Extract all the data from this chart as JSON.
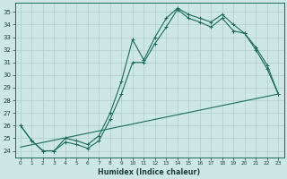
{
  "xlabel": "Humidex (Indice chaleur)",
  "xlim": [
    -0.5,
    23.5
  ],
  "ylim": [
    23.5,
    35.7
  ],
  "yticks": [
    24,
    25,
    26,
    27,
    28,
    29,
    30,
    31,
    32,
    33,
    34,
    35
  ],
  "xticks": [
    0,
    1,
    2,
    3,
    4,
    5,
    6,
    7,
    8,
    9,
    10,
    11,
    12,
    13,
    14,
    15,
    16,
    17,
    18,
    19,
    20,
    21,
    22,
    23
  ],
  "bg_color": "#cde8e4",
  "grid_color": "#b0cccc",
  "line_color": "#1a6b5a",
  "line1_y": [
    26,
    24.8,
    24.0,
    24.0,
    25.0,
    24.8,
    24.5,
    25.2,
    27.0,
    29.5,
    32.8,
    31.2,
    33.0,
    34.5,
    35.3,
    34.8,
    34.5,
    34.2,
    34.8,
    34.0,
    33.3,
    32.2,
    30.8,
    28.5
  ],
  "line2_y": [
    26,
    24.8,
    24.0,
    24.0,
    24.7,
    24.5,
    24.2,
    24.8,
    26.5,
    28.5,
    31.0,
    31.0,
    32.5,
    33.8,
    35.2,
    34.5,
    34.2,
    33.8,
    34.5,
    33.5,
    33.3,
    32.0,
    30.5,
    28.5
  ],
  "line3_y": [
    24.3,
    28.5
  ]
}
